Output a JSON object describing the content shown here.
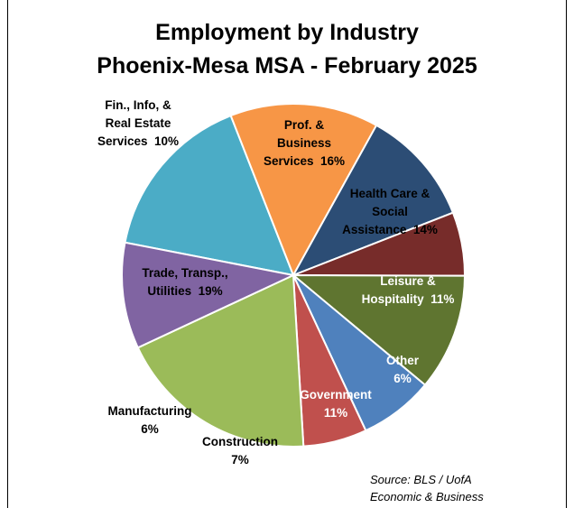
{
  "chart_data": {
    "type": "pie",
    "title_lines": [
      "Employment by Industry",
      "Phoenix-Mesa MSA - February 2025"
    ],
    "slices": [
      {
        "label": [
          "Prof. &",
          "Business",
          "Services  16%"
        ],
        "value": 16,
        "color": "#4BACC6",
        "label_color": "#000000"
      },
      {
        "label": [
          "Health Care &",
          "Social",
          "Assistance  14%"
        ],
        "value": 14,
        "color": "#F79646",
        "label_color": "#000000"
      },
      {
        "label": [
          "Leisure &",
          "Hospitality  11%"
        ],
        "value": 11,
        "color": "#2C4D75",
        "label_color": "#FFFFFF"
      },
      {
        "label": [
          "Other",
          "6%"
        ],
        "value": 6,
        "color": "#772C2A",
        "label_color": "#FFFFFF"
      },
      {
        "label": [
          "Government",
          "11%"
        ],
        "value": 11,
        "color": "#5F7530",
        "label_color": "#FFFFFF"
      },
      {
        "label": [
          "Construction",
          "7%"
        ],
        "value": 7,
        "color": "#4F81BD",
        "label_color": "#000000"
      },
      {
        "label": [
          "Manufacturing",
          "6%"
        ],
        "value": 6,
        "color": "#C0504D",
        "label_color": "#000000"
      },
      {
        "label": [
          "Trade, Transp.,",
          "Utilities  19%"
        ],
        "value": 19,
        "color": "#9BBB59",
        "label_color": "#000000"
      },
      {
        "label": [
          "Fin., Info, &",
          "Real Estate",
          "Services  10%"
        ],
        "value": 10,
        "color": "#8064A2",
        "label_color": "#000000"
      }
    ],
    "source_lines": [
      "Source: BLS / UofA",
      "Economic & Business"
    ]
  }
}
